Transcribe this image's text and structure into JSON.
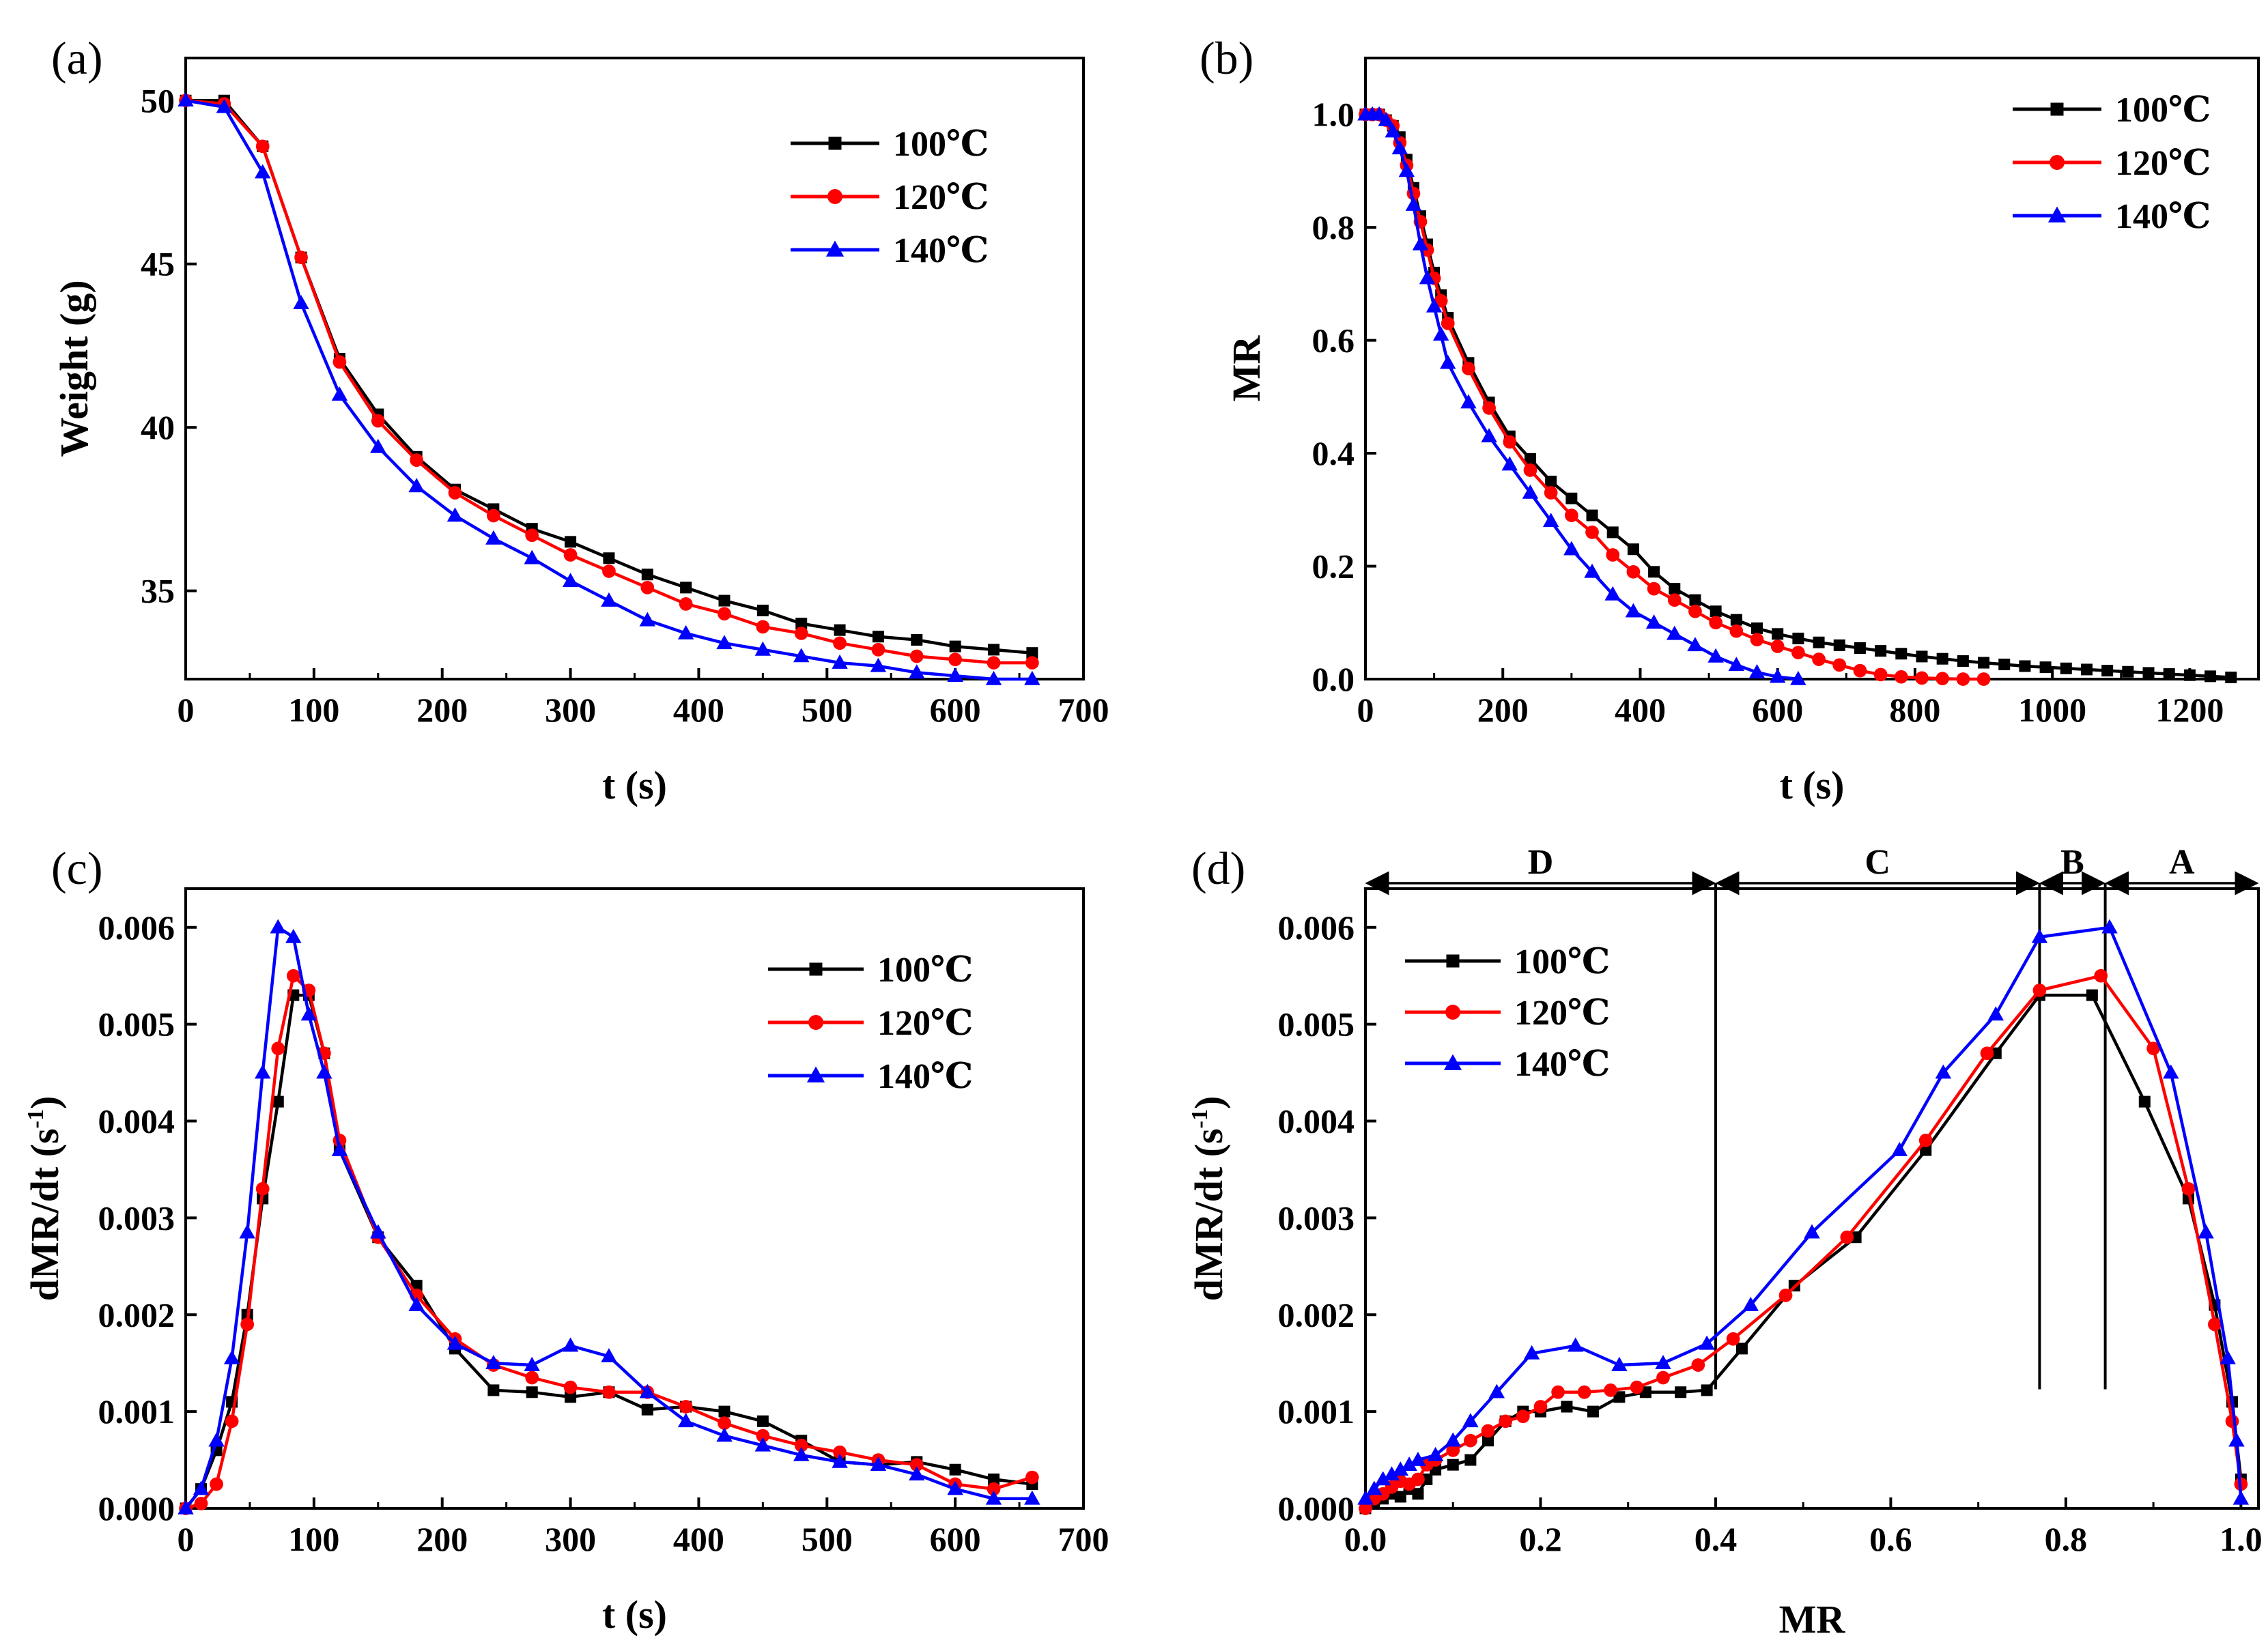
{
  "figure": {
    "temperatures": [
      "100℃",
      "120℃",
      "140℃"
    ],
    "series_colors": {
      "100℃": "#000000",
      "120℃": "#ff0000",
      "140℃": "#0000ff"
    },
    "markers": {
      "100℃": "square",
      "120℃": "circle",
      "140℃": "triangle"
    }
  },
  "chart_data": [
    {
      "id": "a",
      "panel_label": "(a)",
      "type": "line",
      "xlabel": "t (s)",
      "ylabel": "Weight (g)",
      "xlim": [
        0,
        700
      ],
      "ylim": [
        32.3,
        51.3
      ],
      "xticks": [
        0,
        100,
        200,
        300,
        400,
        500,
        600,
        700
      ],
      "yticks": [
        35,
        40,
        45,
        50
      ],
      "legend_position": "top-right",
      "series": [
        {
          "name": "100℃",
          "color": "#000000",
          "marker": "square",
          "x": [
            0,
            30,
            60,
            90,
            120,
            150,
            180,
            210,
            240,
            270,
            300,
            330,
            360,
            390,
            420,
            450,
            480,
            510,
            540,
            570,
            600,
            630,
            660
          ],
          "y": [
            50.0,
            50.0,
            48.6,
            45.2,
            42.1,
            40.4,
            39.1,
            38.1,
            37.5,
            36.9,
            36.5,
            36.0,
            35.5,
            35.1,
            34.7,
            34.4,
            34.0,
            33.8,
            33.6,
            33.5,
            33.3,
            33.2,
            33.1
          ]
        },
        {
          "name": "120℃",
          "color": "#ff0000",
          "marker": "circle",
          "x": [
            0,
            30,
            60,
            90,
            120,
            150,
            180,
            210,
            240,
            270,
            300,
            330,
            360,
            390,
            420,
            450,
            480,
            510,
            540,
            570,
            600,
            630,
            660
          ],
          "y": [
            50.0,
            49.9,
            48.6,
            45.2,
            42.0,
            40.2,
            39.0,
            38.0,
            37.3,
            36.7,
            36.1,
            35.6,
            35.1,
            34.6,
            34.3,
            33.9,
            33.7,
            33.4,
            33.2,
            33.0,
            32.9,
            32.8,
            32.8
          ]
        },
        {
          "name": "140℃",
          "color": "#0000ff",
          "marker": "triangle",
          "x": [
            0,
            30,
            60,
            90,
            120,
            150,
            180,
            210,
            240,
            270,
            300,
            330,
            360,
            390,
            420,
            450,
            480,
            510,
            540,
            570,
            600,
            630,
            660
          ],
          "y": [
            50.0,
            49.8,
            47.8,
            43.8,
            41.0,
            39.4,
            38.2,
            37.3,
            36.6,
            36.0,
            35.3,
            34.7,
            34.1,
            33.7,
            33.4,
            33.2,
            33.0,
            32.8,
            32.7,
            32.5,
            32.4,
            32.3,
            32.3
          ]
        }
      ]
    },
    {
      "id": "b",
      "panel_label": "(b)",
      "type": "line",
      "xlabel": "t (s)",
      "ylabel": "MR",
      "xlim": [
        0,
        1300
      ],
      "ylim": [
        0,
        1.1
      ],
      "xticks": [
        0,
        200,
        400,
        600,
        800,
        1000,
        1200
      ],
      "yticks": [
        0.0,
        0.2,
        0.4,
        0.6,
        0.8,
        1.0
      ],
      "legend_position": "top-right",
      "series": [
        {
          "name": "100℃",
          "color": "#000000",
          "marker": "square",
          "x": [
            0,
            10,
            20,
            30,
            40,
            50,
            60,
            70,
            80,
            90,
            100,
            110,
            120,
            150,
            180,
            210,
            240,
            270,
            300,
            330,
            360,
            390,
            420,
            450,
            480,
            510,
            540,
            570,
            600,
            630,
            660,
            690,
            720,
            750,
            780,
            810,
            840,
            870,
            900,
            930,
            960,
            990,
            1020,
            1050,
            1080,
            1110,
            1140,
            1170,
            1200,
            1230,
            1260
          ],
          "y": [
            1.0,
            1.0,
            1.0,
            0.99,
            0.98,
            0.96,
            0.92,
            0.87,
            0.82,
            0.77,
            0.72,
            0.68,
            0.64,
            0.56,
            0.49,
            0.43,
            0.39,
            0.35,
            0.32,
            0.29,
            0.26,
            0.23,
            0.19,
            0.16,
            0.14,
            0.12,
            0.105,
            0.09,
            0.08,
            0.072,
            0.065,
            0.06,
            0.055,
            0.05,
            0.045,
            0.04,
            0.036,
            0.032,
            0.029,
            0.026,
            0.023,
            0.021,
            0.019,
            0.017,
            0.015,
            0.013,
            0.011,
            0.009,
            0.007,
            0.005,
            0.003
          ]
        },
        {
          "name": "120℃",
          "color": "#ff0000",
          "marker": "circle",
          "x": [
            0,
            10,
            20,
            30,
            40,
            50,
            60,
            70,
            80,
            90,
            100,
            110,
            120,
            150,
            180,
            210,
            240,
            270,
            300,
            330,
            360,
            390,
            420,
            450,
            480,
            510,
            540,
            570,
            600,
            630,
            660,
            690,
            720,
            750,
            780,
            810,
            840,
            870,
            900
          ],
          "y": [
            1.0,
            1.0,
            1.0,
            0.99,
            0.98,
            0.95,
            0.91,
            0.86,
            0.81,
            0.76,
            0.71,
            0.67,
            0.63,
            0.55,
            0.48,
            0.42,
            0.37,
            0.33,
            0.29,
            0.26,
            0.22,
            0.19,
            0.16,
            0.14,
            0.12,
            0.1,
            0.085,
            0.07,
            0.058,
            0.047,
            0.035,
            0.025,
            0.015,
            0.008,
            0.004,
            0.002,
            0.001,
            0.0,
            0.0
          ]
        },
        {
          "name": "140℃",
          "color": "#0000ff",
          "marker": "triangle",
          "x": [
            0,
            10,
            20,
            30,
            40,
            50,
            60,
            70,
            80,
            90,
            100,
            110,
            120,
            150,
            180,
            210,
            240,
            270,
            300,
            330,
            360,
            390,
            420,
            450,
            480,
            510,
            540,
            570,
            600,
            630
          ],
          "y": [
            1.0,
            1.0,
            1.0,
            0.99,
            0.97,
            0.94,
            0.9,
            0.84,
            0.77,
            0.71,
            0.66,
            0.61,
            0.56,
            0.49,
            0.43,
            0.38,
            0.33,
            0.28,
            0.23,
            0.19,
            0.15,
            0.12,
            0.1,
            0.08,
            0.06,
            0.04,
            0.025,
            0.012,
            0.004,
            0.0
          ]
        }
      ]
    },
    {
      "id": "c",
      "panel_label": "(c)",
      "type": "line",
      "xlabel": "t (s)",
      "ylabel_main": "dMR/dt (s",
      "ylabel_exp": "-1",
      "ylabel_close": ")",
      "xlim": [
        0,
        700
      ],
      "ylim": [
        0,
        0.0064
      ],
      "xticks": [
        0,
        100,
        200,
        300,
        400,
        500,
        600,
        700
      ],
      "yticks": [
        0.0,
        0.001,
        0.002,
        0.003,
        0.004,
        0.005,
        0.006
      ],
      "ytick_labels": [
        "0.000",
        "0.001",
        "0.002",
        "0.003",
        "0.004",
        "0.005",
        "0.006"
      ],
      "legend_position": "top-right",
      "series": [
        {
          "name": "100℃",
          "color": "#000000",
          "marker": "square",
          "x": [
            0,
            12,
            24,
            36,
            48,
            60,
            72,
            84,
            96,
            108,
            120,
            150,
            180,
            210,
            240,
            270,
            300,
            330,
            360,
            390,
            420,
            450,
            480,
            510,
            540,
            570,
            600,
            630,
            660
          ],
          "y": [
            0.0,
            0.0002,
            0.0006,
            0.0011,
            0.002,
            0.0032,
            0.0042,
            0.0053,
            0.0053,
            0.0047,
            0.0037,
            0.0028,
            0.0023,
            0.00165,
            0.00122,
            0.0012,
            0.00115,
            0.0012,
            0.00102,
            0.00105,
            0.001,
            0.0009,
            0.0007,
            0.00048,
            0.00045,
            0.00048,
            0.0004,
            0.0003,
            0.00025
          ]
        },
        {
          "name": "120℃",
          "color": "#ff0000",
          "marker": "circle",
          "x": [
            0,
            12,
            24,
            36,
            48,
            60,
            72,
            84,
            96,
            108,
            120,
            150,
            180,
            210,
            240,
            270,
            300,
            330,
            360,
            390,
            420,
            450,
            480,
            510,
            540,
            570,
            600,
            630,
            660
          ],
          "y": [
            0.0,
            5e-05,
            0.00025,
            0.0009,
            0.0019,
            0.0033,
            0.00475,
            0.0055,
            0.00535,
            0.0047,
            0.0038,
            0.0028,
            0.0022,
            0.00175,
            0.00148,
            0.00135,
            0.00125,
            0.0012,
            0.0012,
            0.00105,
            0.00088,
            0.00075,
            0.00065,
            0.00058,
            0.0005,
            0.00045,
            0.00025,
            0.0002,
            0.00032
          ]
        },
        {
          "name": "140℃",
          "color": "#0000ff",
          "marker": "triangle",
          "x": [
            0,
            12,
            24,
            36,
            48,
            60,
            72,
            84,
            96,
            108,
            120,
            150,
            180,
            210,
            240,
            270,
            300,
            330,
            360,
            390,
            420,
            450,
            480,
            510,
            540,
            570,
            600,
            630,
            660
          ],
          "y": [
            0.0,
            0.0002,
            0.0007,
            0.00155,
            0.00285,
            0.0045,
            0.006,
            0.0059,
            0.0051,
            0.0045,
            0.0037,
            0.00285,
            0.0021,
            0.0017,
            0.0015,
            0.00148,
            0.00168,
            0.00157,
            0.0012,
            0.0009,
            0.00075,
            0.00065,
            0.00055,
            0.00048,
            0.00045,
            0.00035,
            0.0002,
            0.0001,
            0.0001
          ]
        }
      ]
    },
    {
      "id": "d",
      "panel_label": "(d)",
      "type": "line",
      "xlabel": "MR",
      "ylabel_main": "dMR/dt (s",
      "ylabel_exp": "-1",
      "ylabel_close": ")",
      "xlim": [
        0,
        1.02
      ],
      "ylim": [
        0,
        0.0064
      ],
      "xticks": [
        0.0,
        0.2,
        0.4,
        0.6,
        0.8,
        1.0
      ],
      "xtick_labels": [
        "0.0",
        "0.2",
        "0.4",
        "0.6",
        "0.8",
        "1.0"
      ],
      "yticks": [
        0.0,
        0.001,
        0.002,
        0.003,
        0.004,
        0.005,
        0.006
      ],
      "ytick_labels": [
        "0.000",
        "0.001",
        "0.002",
        "0.003",
        "0.004",
        "0.005",
        "0.006"
      ],
      "legend_position": "top-left",
      "regions": [
        {
          "label": "D",
          "from": 0.0,
          "to": 0.4
        },
        {
          "label": "C",
          "from": 0.4,
          "to": 0.77
        },
        {
          "label": "B",
          "from": 0.77,
          "to": 0.845
        },
        {
          "label": "A",
          "from": 0.845,
          "to": 1.02
        }
      ],
      "region_boundaries": [
        0.4,
        0.77,
        0.845
      ],
      "series": [
        {
          "name": "100℃",
          "color": "#000000",
          "marker": "square",
          "x": [
            0.0,
            0.01,
            0.02,
            0.03,
            0.04,
            0.05,
            0.06,
            0.07,
            0.08,
            0.1,
            0.12,
            0.14,
            0.16,
            0.18,
            0.2,
            0.23,
            0.26,
            0.29,
            0.32,
            0.36,
            0.39,
            0.43,
            0.49,
            0.56,
            0.64,
            0.72,
            0.77,
            0.83,
            0.89,
            0.94,
            0.97,
            0.99,
            1.0
          ],
          "y": [
            0.0,
            5e-05,
            0.0001,
            0.00015,
            0.00012,
            0.0002,
            0.00015,
            0.0003,
            0.0004,
            0.00045,
            0.0005,
            0.0007,
            0.0009,
            0.001,
            0.001,
            0.00105,
            0.001,
            0.00115,
            0.0012,
            0.0012,
            0.00122,
            0.00165,
            0.0023,
            0.0028,
            0.0037,
            0.0047,
            0.0053,
            0.0053,
            0.0042,
            0.0032,
            0.0021,
            0.0011,
            0.0003
          ]
        },
        {
          "name": "120℃",
          "color": "#ff0000",
          "marker": "circle",
          "x": [
            0.0,
            0.01,
            0.02,
            0.03,
            0.04,
            0.05,
            0.06,
            0.07,
            0.08,
            0.1,
            0.12,
            0.14,
            0.16,
            0.18,
            0.2,
            0.22,
            0.25,
            0.28,
            0.31,
            0.34,
            0.38,
            0.42,
            0.48,
            0.55,
            0.64,
            0.71,
            0.77,
            0.84,
            0.9,
            0.94,
            0.97,
            0.99,
            1.0
          ],
          "y": [
            0.0,
            0.0001,
            0.00015,
            0.00022,
            0.00028,
            0.00025,
            0.0003,
            0.00045,
            0.0005,
            0.0006,
            0.0007,
            0.0008,
            0.0009,
            0.00095,
            0.00105,
            0.0012,
            0.0012,
            0.00122,
            0.00125,
            0.00135,
            0.00148,
            0.00175,
            0.0022,
            0.0028,
            0.0038,
            0.0047,
            0.00535,
            0.0055,
            0.00475,
            0.0033,
            0.0019,
            0.0009,
            0.00025
          ]
        },
        {
          "name": "140℃",
          "color": "#0000ff",
          "marker": "triangle",
          "x": [
            0.0,
            0.01,
            0.02,
            0.03,
            0.04,
            0.05,
            0.06,
            0.08,
            0.1,
            0.12,
            0.15,
            0.19,
            0.24,
            0.29,
            0.34,
            0.39,
            0.44,
            0.51,
            0.61,
            0.66,
            0.72,
            0.77,
            0.85,
            0.92,
            0.96,
            0.985,
            0.995,
            1.0
          ],
          "y": [
            0.0001,
            0.0002,
            0.0003,
            0.00035,
            0.0004,
            0.00045,
            0.0005,
            0.00055,
            0.0007,
            0.0009,
            0.0012,
            0.0016,
            0.00168,
            0.00148,
            0.0015,
            0.0017,
            0.0021,
            0.00285,
            0.0037,
            0.0045,
            0.0051,
            0.0059,
            0.006,
            0.0045,
            0.00285,
            0.00155,
            0.0007,
            0.0001
          ]
        }
      ]
    }
  ]
}
